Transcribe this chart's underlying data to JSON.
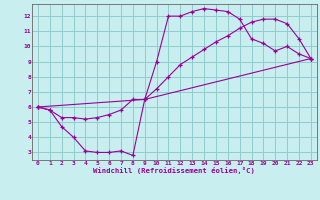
{
  "xlabel": "Windchill (Refroidissement éolien,°C)",
  "background_color": "#c8eef0",
  "grid_color": "#90cccc",
  "line_color": "#990099",
  "xlim": [
    -0.5,
    23.5
  ],
  "ylim": [
    2.5,
    12.8
  ],
  "xticks": [
    0,
    1,
    2,
    3,
    4,
    5,
    6,
    7,
    8,
    9,
    10,
    11,
    12,
    13,
    14,
    15,
    16,
    17,
    18,
    19,
    20,
    21,
    22,
    23
  ],
  "yticks": [
    3,
    4,
    5,
    6,
    7,
    8,
    9,
    10,
    11,
    12
  ],
  "series1_x": [
    0,
    1,
    2,
    3,
    4,
    5,
    6,
    7,
    8,
    9,
    10,
    11,
    12,
    13,
    14,
    15,
    16,
    17,
    18,
    19,
    20,
    21,
    22,
    23
  ],
  "series1_y": [
    6.0,
    5.8,
    4.7,
    4.0,
    3.1,
    3.0,
    3.0,
    3.1,
    2.8,
    6.5,
    9.0,
    12.0,
    12.0,
    12.3,
    12.5,
    12.4,
    12.3,
    11.8,
    10.5,
    10.2,
    9.7,
    10.0,
    9.5,
    9.2
  ],
  "series2_x": [
    0,
    1,
    2,
    3,
    4,
    5,
    6,
    7,
    8,
    9,
    10,
    11,
    12,
    13,
    14,
    15,
    16,
    17,
    18,
    19,
    20,
    21,
    22,
    23
  ],
  "series2_y": [
    6.0,
    5.8,
    5.3,
    5.3,
    5.2,
    5.3,
    5.5,
    5.8,
    6.5,
    6.5,
    7.2,
    8.0,
    8.8,
    9.3,
    9.8,
    10.3,
    10.7,
    11.2,
    11.6,
    11.8,
    11.8,
    11.5,
    10.5,
    9.2
  ],
  "series3_x": [
    0,
    9,
    23
  ],
  "series3_y": [
    6.0,
    6.5,
    9.2
  ]
}
